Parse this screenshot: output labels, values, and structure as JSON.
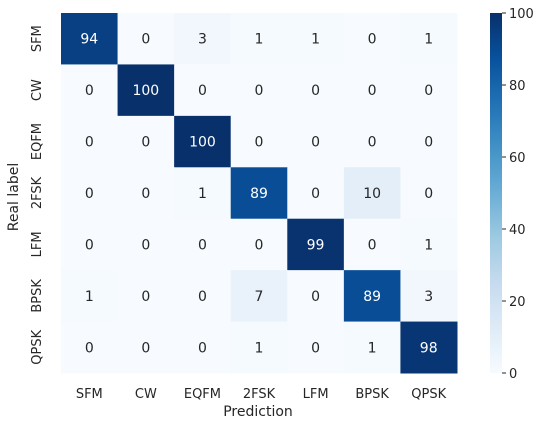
{
  "chart_data": {
    "type": "heatmap",
    "title": "",
    "xlabel": "Prediction",
    "ylabel": "Real label",
    "x_categories": [
      "SFM",
      "CW",
      "EQFM",
      "2FSK",
      "LFM",
      "BPSK",
      "QPSK"
    ],
    "y_categories": [
      "SFM",
      "CW",
      "EQFM",
      "2FSK",
      "LFM",
      "BPSK",
      "QPSK"
    ],
    "values": [
      [
        94,
        0,
        3,
        1,
        1,
        0,
        1
      ],
      [
        0,
        100,
        0,
        0,
        0,
        0,
        0
      ],
      [
        0,
        0,
        100,
        0,
        0,
        0,
        0
      ],
      [
        0,
        0,
        1,
        89,
        0,
        10,
        0
      ],
      [
        0,
        0,
        0,
        0,
        99,
        0,
        1
      ],
      [
        1,
        0,
        0,
        7,
        0,
        89,
        3
      ],
      [
        0,
        0,
        0,
        1,
        0,
        1,
        98
      ]
    ],
    "colorbar": {
      "range": [
        0,
        100
      ],
      "ticks": [
        0,
        20,
        40,
        60,
        80,
        100
      ],
      "colormap": "Blues"
    },
    "grid": false
  }
}
